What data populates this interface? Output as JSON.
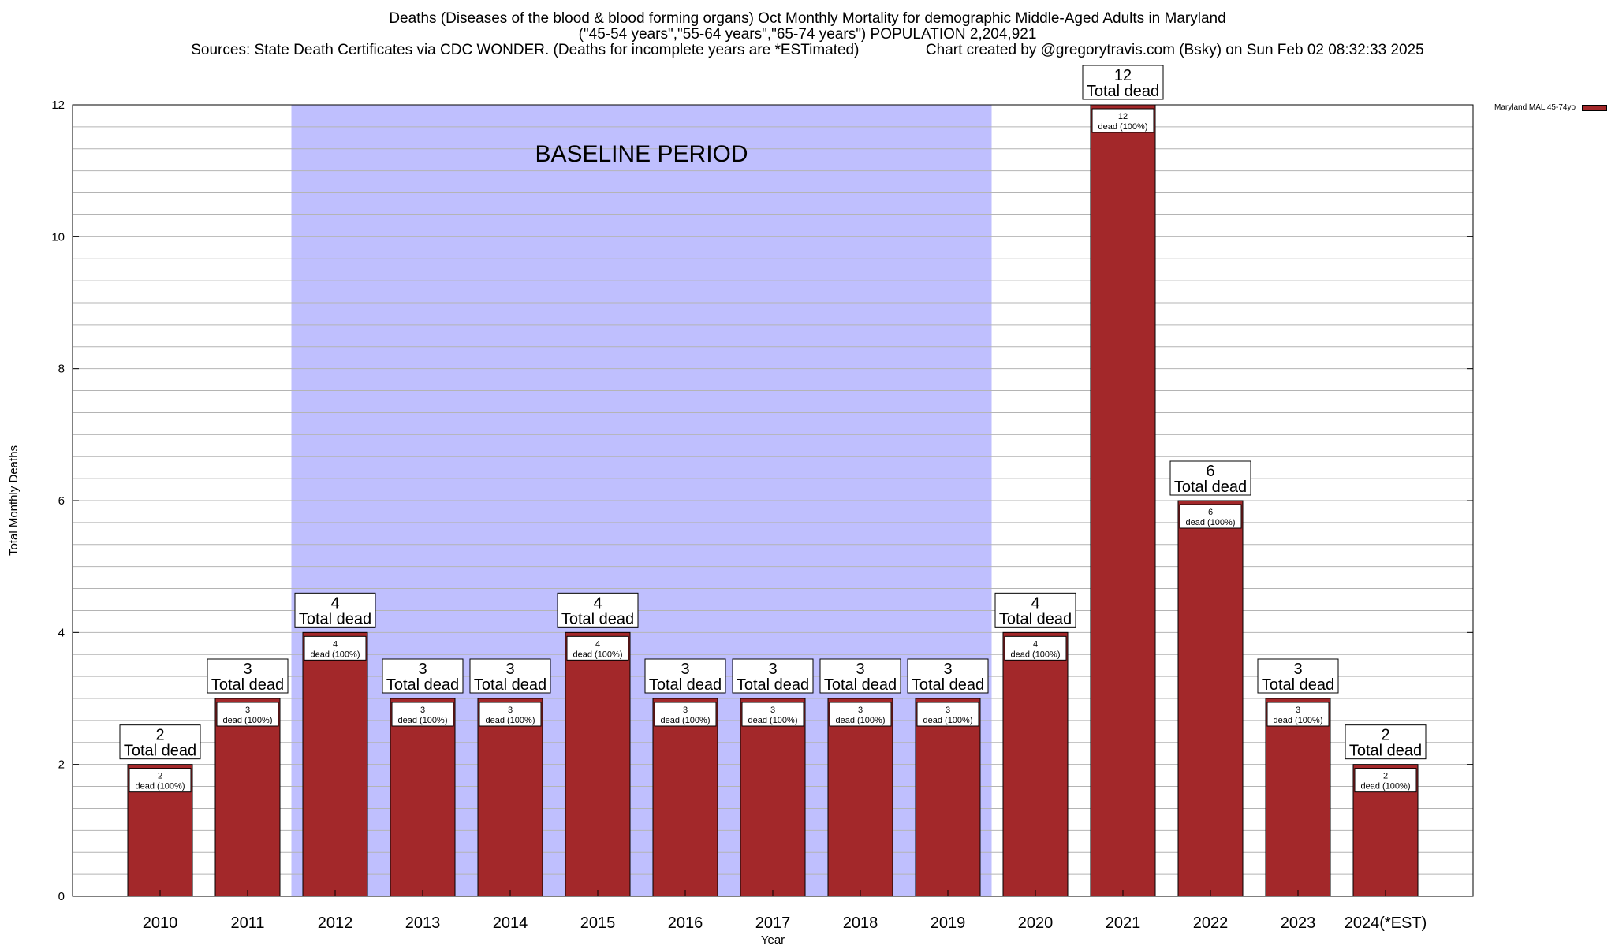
{
  "title_lines": [
    "Deaths (Diseases of the blood & blood forming organs) Oct Monthly Mortality for demographic Middle-Aged Adults in Maryland",
    "(\"45-54 years\",\"55-64 years\",\"65-74 years\") POPULATION 2,204,921",
    "Sources: State Death Certificates via CDC WONDER. (Deaths for incomplete years are *ESTimated)                Chart created by @gregorytravis.com (Bsky) on Sun Feb 02 08:32:33 2025"
  ],
  "chart_data": {
    "type": "bar",
    "categories": [
      "2010",
      "2011",
      "2012",
      "2013",
      "2014",
      "2015",
      "2016",
      "2017",
      "2018",
      "2019",
      "2020",
      "2021",
      "2022",
      "2023",
      "2024(*EST)"
    ],
    "series": [
      {
        "name": "Maryland MAL 45-74yo",
        "values": [
          2,
          3,
          4,
          3,
          3,
          4,
          3,
          3,
          3,
          3,
          4,
          12,
          6,
          3,
          2
        ]
      }
    ],
    "xlabel": "Year",
    "ylabel": "Total Monthly Deaths",
    "ylim": [
      0,
      12
    ],
    "yticks": [
      0,
      2,
      4,
      6,
      8,
      10,
      12
    ],
    "grid": true,
    "legend_position": "top-right",
    "top_label_suffix": "Total dead",
    "inner_label_suffix": "dead (100%)",
    "baseline": {
      "label": "BASELINE PERIOD",
      "from": "2012",
      "to": "2019",
      "color": "#bfbffe"
    },
    "bar_color": "#a3282a"
  }
}
